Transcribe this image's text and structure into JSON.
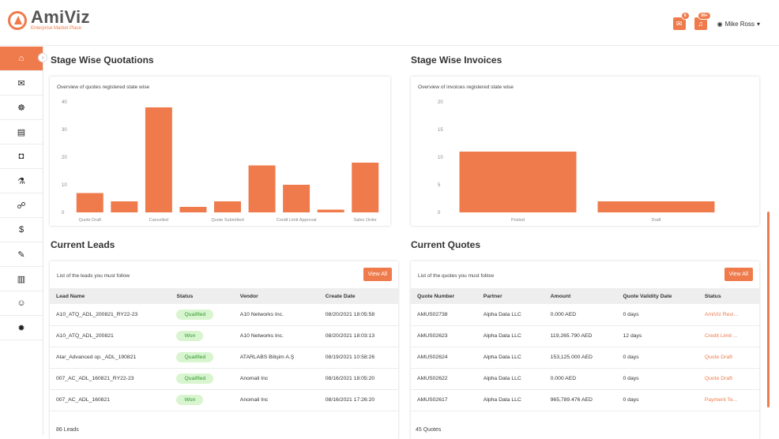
{
  "brand": {
    "name": "AmiViz",
    "tagline": "Enterprise Market Place",
    "accent": "#ef7b4c"
  },
  "header": {
    "notif1_badge": "6",
    "notif2_badge": "99+",
    "user_name": "Mike Ross"
  },
  "sidebar": {
    "items": [
      {
        "icon": "home-icon",
        "glyph": "⌂"
      },
      {
        "icon": "mail-icon",
        "glyph": "✉"
      },
      {
        "icon": "handshake-icon",
        "glyph": "☸"
      },
      {
        "icon": "document-icon",
        "glyph": "▤"
      },
      {
        "icon": "bag-icon",
        "glyph": "◘"
      },
      {
        "icon": "flask-icon",
        "glyph": "⚗"
      },
      {
        "icon": "network-icon",
        "glyph": "☍"
      },
      {
        "icon": "dollar-cycle-icon",
        "glyph": "$"
      },
      {
        "icon": "certificate-icon",
        "glyph": "✎"
      },
      {
        "icon": "store-icon",
        "glyph": "▥"
      },
      {
        "icon": "users-icon",
        "glyph": "☺"
      },
      {
        "icon": "settings-icon",
        "glyph": "✹"
      }
    ]
  },
  "quotations": {
    "title": "Stage Wise Quotations",
    "subtitle": "Overview of quotes registered state wise"
  },
  "invoices": {
    "title": "Stage Wise Invoices",
    "subtitle": "Overview of invoices registered state wise"
  },
  "chart_data": [
    {
      "type": "bar",
      "title": "",
      "categories": [
        "Quote Draft",
        "",
        "Cancelled",
        "",
        "Quote Submitted",
        "",
        "Credit Limit Approval",
        "",
        "Sales Order"
      ],
      "values": [
        7,
        4,
        38,
        2,
        4,
        17,
        10,
        1,
        18
      ],
      "ylim": [
        0,
        40
      ],
      "yticks": [
        0,
        10,
        20,
        30,
        40
      ],
      "color": "#ef7b4c"
    },
    {
      "type": "bar",
      "title": "",
      "categories": [
        "Posted",
        "Draft"
      ],
      "values": [
        11,
        2
      ],
      "ylim": [
        0,
        20
      ],
      "yticks": [
        0,
        5,
        10,
        15,
        20
      ],
      "color": "#ef7b4c"
    }
  ],
  "leads": {
    "title": "Current Leads",
    "subtitle": "List of the leads you must follow",
    "view_all": "View All",
    "columns": [
      "Lead Name",
      "Status",
      "Vendor",
      "Create Date"
    ],
    "rows": [
      [
        "A10_ATQ_ADL_200821_RY22-23",
        "Qualified",
        "A10 Networks Inc.",
        "08/20/2021 18:05:58"
      ],
      [
        "A10_ATQ_ADL_200821",
        "Won",
        "A10 Networks Inc.",
        "08/20/2021 18:03:13"
      ],
      [
        "Atar_Advanced op._ADL_190821",
        "Qualified",
        "ATARLABS Bilişim A.Ş",
        "08/19/2021 10:58:26"
      ],
      [
        "007_AC_ADL_160821_RY22-23",
        "Qualified",
        "Anomali Inc",
        "08/16/2021 18:05:20"
      ],
      [
        "007_AC_ADL_160821",
        "Won",
        "Anomali Inc",
        "08/16/2021 17:26:20"
      ]
    ],
    "count": "86 Leads"
  },
  "quotes": {
    "title": "Current Quotes",
    "subtitle": "List of the quotes you must follow",
    "view_all": "View All",
    "columns": [
      "Quote Number",
      "Partner",
      "Amount",
      "Quote Validity Date",
      "Status"
    ],
    "rows": [
      [
        "AMUS02738",
        "Alpha Data LLC",
        "0.000 AED",
        "0 days",
        "AmiViz Revi..."
      ],
      [
        "AMUS02623",
        "Alpha Data LLC",
        "119,265.790 AED",
        "12 days",
        "Credit Limit ..."
      ],
      [
        "AMUS02624",
        "Alpha Data LLC",
        "153,125.000 AED",
        "0 days",
        "Quote Draft"
      ],
      [
        "AMUS02622",
        "Alpha Data LLC",
        "0.000 AED",
        "0 days",
        "Quote Draft"
      ],
      [
        "AMUS02617",
        "Alpha Data LLC",
        "965,789.476 AED",
        "0 days",
        "Payment Te..."
      ]
    ],
    "count": "45 Quotes"
  }
}
